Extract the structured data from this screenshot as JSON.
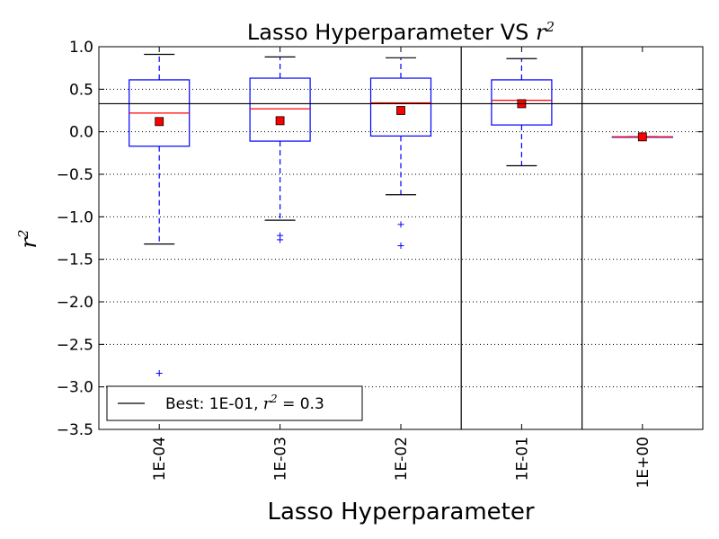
{
  "chart_data": {
    "type": "box",
    "title_prefix": "Lasso Hyperparameter VS ",
    "title_math": "r",
    "title_sup": "2",
    "xlabel": "Lasso Hyperparameter",
    "ylabel_math": "r",
    "ylabel_sup": "2",
    "ylim": [
      -3.5,
      1.0
    ],
    "yticks": [
      1.0,
      0.5,
      0.0,
      -0.5,
      -1.0,
      -1.5,
      -2.0,
      -2.5,
      -3.0,
      -3.5
    ],
    "ytick_labels": [
      "1.0",
      "0.5",
      "0.0",
      "−0.5",
      "−1.0",
      "−1.5",
      "−2.0",
      "−2.5",
      "−3.0",
      "−3.5"
    ],
    "grid": "horizontal dotted",
    "categories": [
      "1E-04",
      "1E-03",
      "1E-02",
      "1E-01",
      "1E+00"
    ],
    "boxes": [
      {
        "whisker_low": -1.32,
        "q1": -0.17,
        "median": 0.22,
        "q3": 0.61,
        "whisker_high": 0.91,
        "mean": 0.12,
        "outliers": [
          -2.84
        ]
      },
      {
        "whisker_low": -1.04,
        "q1": -0.11,
        "median": 0.27,
        "q3": 0.63,
        "whisker_high": 0.88,
        "mean": 0.13,
        "outliers": [
          -1.22,
          -1.27
        ]
      },
      {
        "whisker_low": -0.74,
        "q1": -0.05,
        "median": 0.34,
        "q3": 0.63,
        "whisker_high": 0.87,
        "mean": 0.25,
        "outliers": [
          -1.09,
          -1.34
        ]
      },
      {
        "whisker_low": -0.4,
        "q1": 0.08,
        "median": 0.37,
        "q3": 0.61,
        "whisker_high": 0.86,
        "mean": 0.33,
        "outliers": []
      },
      {
        "whisker_low": -0.06,
        "q1": -0.06,
        "median": -0.06,
        "q3": -0.06,
        "whisker_high": -0.06,
        "mean": -0.06,
        "outliers": []
      }
    ],
    "best_line": {
      "value": 0.33,
      "best_index": 3
    },
    "legend": {
      "position": "lower-left",
      "label_prefix": "Best: 1E-01, ",
      "label_math": "r",
      "label_sup": "2",
      "label_suffix": " = 0.3"
    },
    "colors": {
      "box": "#0000ff",
      "median": "#ff0000",
      "mean_marker": "#ff0000",
      "whisker_cap": "#000000",
      "outlier": "#0000ff",
      "best_line": "#000000",
      "grid": "#000000"
    }
  }
}
